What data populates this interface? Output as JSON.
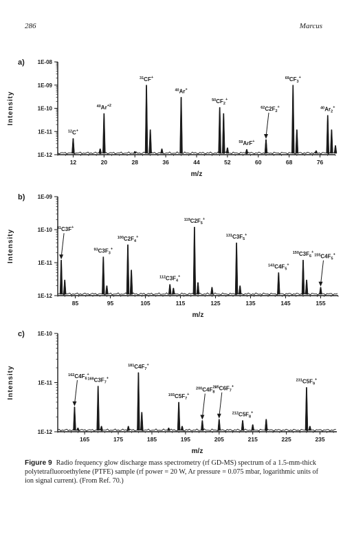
{
  "header": {
    "page_number": "286",
    "author": "Marcus"
  },
  "caption": {
    "label": "Figure 9",
    "text": "Radio frequency glow discharge mass spectrometry (rf GD-MS) spectrum of a 1.5-mm-thick polytetrafluoroethylene (PTFE) sample (rf power = 20 W, Ar pressure = 0.075 mbar, logarithmic units of ion signal current). (From Ref. 70.)"
  },
  "chart_data": [
    {
      "type": "line",
      "panel": "a)",
      "xlabel": "m/z",
      "ylabel": "Intensity",
      "yscale": "log",
      "xlim": [
        8,
        80
      ],
      "ylim": [
        1e-12,
        1e-08
      ],
      "xticks": [
        12,
        20,
        28,
        36,
        44,
        52,
        60,
        68,
        76
      ],
      "yticks": [
        {
          "v": 1e-12,
          "label": "1E-12"
        },
        {
          "v": 1e-11,
          "label": "1E-11"
        },
        {
          "v": 1e-10,
          "label": "1E-10"
        },
        {
          "v": 1e-09,
          "label": "1E-09"
        },
        {
          "v": 1e-08,
          "label": "1E-08"
        }
      ],
      "peaks": [
        [
          12,
          5e-12
        ],
        [
          19,
          1.8e-12
        ],
        [
          20,
          6e-11
        ],
        [
          28,
          1.4e-12
        ],
        [
          31,
          1e-09
        ],
        [
          32,
          1.2e-11
        ],
        [
          35,
          1.8e-12
        ],
        [
          40,
          3e-10
        ],
        [
          50,
          1.1e-10
        ],
        [
          51,
          6e-11
        ],
        [
          52,
          2e-12
        ],
        [
          57,
          1.7e-12
        ],
        [
          62,
          4.5e-12
        ],
        [
          69,
          1e-09
        ],
        [
          70,
          1.2e-11
        ],
        [
          75,
          1.5e-12
        ],
        [
          78,
          5e-11
        ],
        [
          79,
          1.2e-11
        ],
        [
          80,
          2.5e-12
        ]
      ],
      "annotations": [
        {
          "x": 12,
          "y": 5e-12,
          "sup": "12",
          "base": "C",
          "sub": "",
          "charge": "+"
        },
        {
          "x": 20,
          "y": 6e-11,
          "sup": "40",
          "base": "Ar",
          "sub": "",
          "charge": "+2"
        },
        {
          "x": 31,
          "y": 1e-09,
          "sup": "31",
          "base": "CF",
          "sub": "",
          "charge": "+"
        },
        {
          "x": 40,
          "y": 3e-10,
          "sup": "40",
          "base": "Ar",
          "sub": "",
          "charge": "+"
        },
        {
          "x": 50,
          "y": 1.1e-10,
          "sup": "50",
          "base": "CF",
          "sub": "2",
          "charge": "+"
        },
        {
          "x": 57,
          "y": 1.7e-12,
          "sup": "59",
          "base": "ArF",
          "sub": "",
          "charge": "+"
        },
        {
          "x": 62,
          "y": 4.5e-12,
          "sup": "62",
          "base": "C2F",
          "sub": "2",
          "charge": "+",
          "arrow": true
        },
        {
          "x": 69,
          "y": 1e-09,
          "sup": "69",
          "base": "CF",
          "sub": "3",
          "charge": "+"
        },
        {
          "x": 78,
          "y": 5e-11,
          "sup": "40",
          "base": "Ar",
          "sub": "2",
          "charge": "+"
        }
      ]
    },
    {
      "type": "line",
      "panel": "b)",
      "xlabel": "m/z",
      "ylabel": "Intensity",
      "yscale": "log",
      "xlim": [
        80,
        160
      ],
      "ylim": [
        1e-12,
        1e-09
      ],
      "xticks": [
        85,
        95,
        105,
        115,
        125,
        135,
        145,
        155
      ],
      "yticks": [
        {
          "v": 1e-12,
          "label": "1E-12"
        },
        {
          "v": 1e-11,
          "label": "1E-11"
        },
        {
          "v": 1e-10,
          "label": "1E-10"
        },
        {
          "v": 1e-09,
          "label": "1E-09"
        }
      ],
      "peaks": [
        [
          81,
          1.2e-11
        ],
        [
          82,
          3e-12
        ],
        [
          93,
          1.5e-11
        ],
        [
          94,
          2e-12
        ],
        [
          100,
          3.5e-11
        ],
        [
          101,
          6e-12
        ],
        [
          112,
          2.2e-12
        ],
        [
          113,
          1.7e-12
        ],
        [
          119,
          1.2e-10
        ],
        [
          120,
          2.5e-12
        ],
        [
          124,
          1.8e-12
        ],
        [
          131,
          4e-11
        ],
        [
          132,
          2e-12
        ],
        [
          143,
          5e-12
        ],
        [
          150,
          1.2e-11
        ],
        [
          151,
          3e-12
        ],
        [
          155,
          1.8e-12
        ]
      ],
      "annotations": [
        {
          "x": 81,
          "y": 1.2e-11,
          "sup": "81",
          "base": "C3F",
          "sub": "",
          "charge": "+",
          "arrow": true
        },
        {
          "x": 93,
          "y": 1.5e-11,
          "sup": "93",
          "base": "C3F",
          "sub": "3",
          "charge": "+"
        },
        {
          "x": 100,
          "y": 3.5e-11,
          "sup": "100",
          "base": "C2F",
          "sub": "4",
          "charge": "+"
        },
        {
          "x": 112,
          "y": 2.2e-12,
          "sup": "112",
          "base": "C3F",
          "sub": "4",
          "charge": "+"
        },
        {
          "x": 119,
          "y": 1.2e-10,
          "sup": "119",
          "base": "C2F",
          "sub": "5",
          "charge": "+"
        },
        {
          "x": 131,
          "y": 4e-11,
          "sup": "131",
          "base": "C3F",
          "sub": "5",
          "charge": "+"
        },
        {
          "x": 143,
          "y": 5e-12,
          "sup": "143",
          "base": "C4F",
          "sub": "5",
          "charge": "+"
        },
        {
          "x": 150,
          "y": 1.2e-11,
          "sup": "150",
          "base": "C3F",
          "sub": "6",
          "charge": "+"
        },
        {
          "x": 155,
          "y": 1.8e-12,
          "sup": "155",
          "base": "C4F",
          "sub": "5",
          "charge": "+",
          "arrow": true
        }
      ]
    },
    {
      "type": "line",
      "panel": "c)",
      "xlabel": "m/z",
      "ylabel": "Intensity",
      "yscale": "log",
      "xlim": [
        157,
        240
      ],
      "ylim": [
        1e-12,
        1e-10
      ],
      "xticks": [
        165,
        175,
        185,
        195,
        205,
        215,
        225,
        235
      ],
      "yticks": [
        {
          "v": 1e-12,
          "label": "1E-12"
        },
        {
          "v": 1e-11,
          "label": "1E-11"
        },
        {
          "v": 1e-10,
          "label": "1E-10"
        }
      ],
      "peaks": [
        [
          162,
          3.2e-12
        ],
        [
          163,
          1.2e-12
        ],
        [
          169,
          8.5e-12
        ],
        [
          170,
          1.3e-12
        ],
        [
          178,
          1.3e-12
        ],
        [
          181,
          1.6e-11
        ],
        [
          182,
          2.5e-12
        ],
        [
          190,
          1.2e-12
        ],
        [
          193,
          4e-12
        ],
        [
          194,
          1.3e-12
        ],
        [
          200,
          1.7e-12
        ],
        [
          205,
          1.8e-12
        ],
        [
          212,
          1.7e-12
        ],
        [
          215,
          1.4e-12
        ],
        [
          219,
          1.8e-12
        ],
        [
          231,
          8e-12
        ],
        [
          232,
          1.3e-12
        ]
      ],
      "annotations": [
        {
          "x": 162,
          "y": 3.2e-12,
          "sup": "162",
          "base": "C4F",
          "sub": "6",
          "charge": "+",
          "arrow": true
        },
        {
          "x": 169,
          "y": 8.5e-12,
          "sup": "169",
          "base": "C3F",
          "sub": "7",
          "charge": "+"
        },
        {
          "x": 181,
          "y": 1.6e-11,
          "sup": "181",
          "base": "C4F",
          "sub": "7",
          "charge": "+"
        },
        {
          "x": 193,
          "y": 4e-12,
          "sup": "193",
          "base": "C5F",
          "sub": "7",
          "charge": "+"
        },
        {
          "x": 200,
          "y": 1.7e-12,
          "sup": "200",
          "base": "C4F",
          "sub": "8",
          "charge": "+",
          "arrow": true
        },
        {
          "x": 205,
          "y": 1.8e-12,
          "sup": "205",
          "base": "C6F",
          "sub": "7",
          "charge": "+",
          "arrow": true
        },
        {
          "x": 212,
          "y": 1.7e-12,
          "sup": "212",
          "base": "C5F",
          "sub": "8",
          "charge": "+"
        },
        {
          "x": 231,
          "y": 8e-12,
          "sup": "231",
          "base": "C5F",
          "sub": "9",
          "charge": "+"
        }
      ]
    }
  ]
}
